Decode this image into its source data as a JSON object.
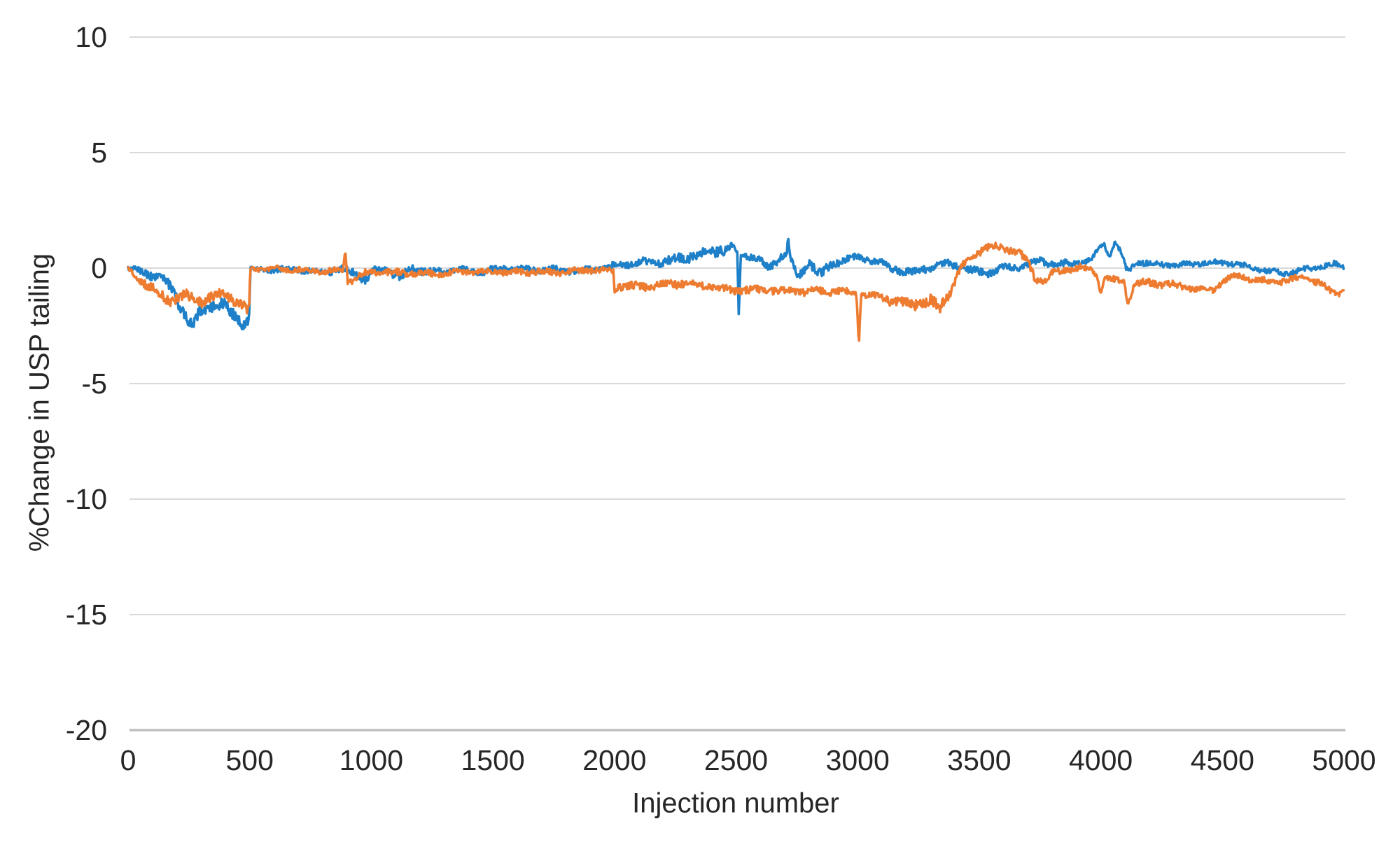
{
  "figure": {
    "background": "#FFFFFF"
  },
  "chart_data": {
    "type": "line",
    "title": "",
    "xlabel": "Injection number",
    "ylabel": "%Change in USP tailing",
    "xlim": [
      0,
      5000
    ],
    "ylim": [
      -20,
      10
    ],
    "xticks": [
      0,
      500,
      1000,
      1500,
      2000,
      2500,
      3000,
      3500,
      4000,
      4500,
      5000
    ],
    "yticks": [
      10,
      5,
      0,
      -5,
      -10,
      -15,
      -20
    ],
    "grid": "horizontal-only",
    "legend": "none",
    "gridline_color": "#D9D9D9",
    "axis_line_color": "#BFBFBF",
    "tick_label_color": "#262626",
    "noise_seed": 20250101,
    "series": [
      {
        "name": "blue-series",
        "color": "#1E80C8",
        "line_width": 3.6,
        "noise_note": "trend points are [injection, %change, local noise amplitude]",
        "trend": [
          [
            0,
            0,
            0.08
          ],
          [
            40,
            -0.15,
            0.15
          ],
          [
            100,
            -0.35,
            0.2
          ],
          [
            160,
            -0.7,
            0.22
          ],
          [
            210,
            -1.5,
            0.28
          ],
          [
            245,
            -2.3,
            0.3
          ],
          [
            265,
            -2.45,
            0.28
          ],
          [
            300,
            -1.85,
            0.28
          ],
          [
            340,
            -1.5,
            0.28
          ],
          [
            390,
            -1.55,
            0.25
          ],
          [
            430,
            -1.95,
            0.28
          ],
          [
            465,
            -2.3,
            0.28
          ],
          [
            497,
            -2.35,
            0.25
          ],
          [
            503,
            -0.05,
            0.1
          ],
          [
            600,
            -0.1,
            0.13
          ],
          [
            700,
            -0.08,
            0.13
          ],
          [
            800,
            -0.12,
            0.15
          ],
          [
            880,
            0,
            0.15
          ],
          [
            930,
            -0.2,
            0.2
          ],
          [
            975,
            -0.5,
            0.2
          ],
          [
            1010,
            -0.15,
            0.15
          ],
          [
            1060,
            -0.1,
            0.15
          ],
          [
            1120,
            -0.45,
            0.2
          ],
          [
            1170,
            -0.05,
            0.18
          ],
          [
            1250,
            -0.12,
            0.15
          ],
          [
            1350,
            -0.05,
            0.15
          ],
          [
            1450,
            -0.15,
            0.15
          ],
          [
            1550,
            -0.05,
            0.14
          ],
          [
            1650,
            -0.1,
            0.14
          ],
          [
            1750,
            -0.02,
            0.14
          ],
          [
            1850,
            -0.1,
            0.14
          ],
          [
            1950,
            -0.02,
            0.14
          ],
          [
            2030,
            0.12,
            0.15
          ],
          [
            2120,
            0.22,
            0.18
          ],
          [
            2220,
            0.35,
            0.2
          ],
          [
            2320,
            0.6,
            0.22
          ],
          [
            2420,
            0.75,
            0.25
          ],
          [
            2480,
            0.85,
            0.25
          ],
          [
            2505,
            0.65,
            0.15
          ],
          [
            2511,
            -2.05,
            0.05
          ],
          [
            2520,
            0.55,
            0.15
          ],
          [
            2570,
            0.5,
            0.2
          ],
          [
            2635,
            -0.05,
            0.18
          ],
          [
            2680,
            0.55,
            0.2
          ],
          [
            2708,
            0.6,
            0.1
          ],
          [
            2714,
            1.35,
            0.05
          ],
          [
            2722,
            0.5,
            0.12
          ],
          [
            2755,
            -0.35,
            0.18
          ],
          [
            2800,
            0.3,
            0.2
          ],
          [
            2850,
            -0.25,
            0.22
          ],
          [
            2900,
            0.2,
            0.18
          ],
          [
            2960,
            0.4,
            0.16
          ],
          [
            3050,
            0.35,
            0.16
          ],
          [
            3150,
            -0.02,
            0.18
          ],
          [
            3220,
            -0.15,
            0.18
          ],
          [
            3290,
            0.05,
            0.16
          ],
          [
            3360,
            0.2,
            0.16
          ],
          [
            3420,
            0.05,
            0.16
          ],
          [
            3470,
            -0.2,
            0.18
          ],
          [
            3530,
            -0.25,
            0.18
          ],
          [
            3600,
            0,
            0.15
          ],
          [
            3680,
            0.12,
            0.15
          ],
          [
            3755,
            0.35,
            0.16
          ],
          [
            3820,
            0.15,
            0.15
          ],
          [
            3900,
            0.2,
            0.15
          ],
          [
            3960,
            0.35,
            0.15
          ],
          [
            3990,
            0.8,
            0.12
          ],
          [
            4012,
            1.1,
            0.1
          ],
          [
            4035,
            0.45,
            0.12
          ],
          [
            4058,
            1.1,
            0.1
          ],
          [
            4080,
            0.75,
            0.12
          ],
          [
            4102,
            0.02,
            0.12
          ],
          [
            4118,
            -0.15,
            0.12
          ],
          [
            4140,
            0.3,
            0.13
          ],
          [
            4220,
            0.22,
            0.12
          ],
          [
            4320,
            0.12,
            0.12
          ],
          [
            4420,
            0.18,
            0.12
          ],
          [
            4520,
            0.22,
            0.12
          ],
          [
            4620,
            0.05,
            0.12
          ],
          [
            4700,
            -0.12,
            0.12
          ],
          [
            4765,
            -0.22,
            0.12
          ],
          [
            4840,
            -0.08,
            0.12
          ],
          [
            4910,
            0.05,
            0.12
          ],
          [
            4960,
            0.15,
            0.11
          ],
          [
            5000,
            0.05,
            0.1
          ]
        ]
      },
      {
        "name": "orange-series",
        "color": "#ED7C31",
        "line_width": 3.6,
        "noise_note": "trend points are [injection, %change, local noise amplitude]",
        "trend": [
          [
            0,
            -0.05,
            0.08
          ],
          [
            50,
            -0.55,
            0.18
          ],
          [
            110,
            -1.05,
            0.22
          ],
          [
            170,
            -1.35,
            0.24
          ],
          [
            240,
            -1.15,
            0.24
          ],
          [
            300,
            -1.35,
            0.24
          ],
          [
            345,
            -1.25,
            0.22
          ],
          [
            395,
            -1.05,
            0.22
          ],
          [
            450,
            -1.5,
            0.24
          ],
          [
            490,
            -1.9,
            0.22
          ],
          [
            497,
            -1.9,
            0.2
          ],
          [
            503,
            -0.05,
            0.1
          ],
          [
            600,
            -0.06,
            0.12
          ],
          [
            700,
            -0.05,
            0.12
          ],
          [
            800,
            -0.1,
            0.13
          ],
          [
            862,
            -0.1,
            0.12
          ],
          [
            885,
            -0.08,
            0.1
          ],
          [
            893,
            0.75,
            0.08
          ],
          [
            903,
            -0.55,
            0.12
          ],
          [
            930,
            -0.5,
            0.18
          ],
          [
            1000,
            -0.18,
            0.15
          ],
          [
            1080,
            -0.22,
            0.15
          ],
          [
            1180,
            -0.18,
            0.15
          ],
          [
            1280,
            -0.22,
            0.14
          ],
          [
            1380,
            -0.15,
            0.14
          ],
          [
            1480,
            -0.2,
            0.14
          ],
          [
            1580,
            -0.18,
            0.14
          ],
          [
            1680,
            -0.12,
            0.14
          ],
          [
            1780,
            -0.15,
            0.14
          ],
          [
            1880,
            -0.1,
            0.14
          ],
          [
            1960,
            -0.14,
            0.13
          ],
          [
            1995,
            -0.15,
            0.12
          ],
          [
            2001,
            -1.05,
            0.12
          ],
          [
            2015,
            -0.8,
            0.18
          ],
          [
            2100,
            -0.8,
            0.18
          ],
          [
            2200,
            -0.68,
            0.18
          ],
          [
            2290,
            -0.6,
            0.18
          ],
          [
            2380,
            -0.8,
            0.18
          ],
          [
            2470,
            -1,
            0.18
          ],
          [
            2560,
            -0.95,
            0.18
          ],
          [
            2650,
            -0.88,
            0.18
          ],
          [
            2740,
            -0.98,
            0.18
          ],
          [
            2830,
            -1.02,
            0.18
          ],
          [
            2920,
            -1.05,
            0.16
          ],
          [
            2995,
            -1.08,
            0.12
          ],
          [
            3005,
            -3.3,
            0.06
          ],
          [
            3014,
            -1.15,
            0.12
          ],
          [
            3080,
            -1.18,
            0.18
          ],
          [
            3160,
            -1.4,
            0.22
          ],
          [
            3240,
            -1.5,
            0.26
          ],
          [
            3300,
            -1.45,
            0.28
          ],
          [
            3335,
            -1.85,
            0.25
          ],
          [
            3360,
            -1.35,
            0.25
          ],
          [
            3390,
            -0.9,
            0.2
          ],
          [
            3420,
            -0.1,
            0.18
          ],
          [
            3465,
            0.5,
            0.18
          ],
          [
            3510,
            0.8,
            0.18
          ],
          [
            3560,
            0.95,
            0.18
          ],
          [
            3620,
            0.85,
            0.18
          ],
          [
            3665,
            0.7,
            0.18
          ],
          [
            3700,
            0.3,
            0.18
          ],
          [
            3732,
            -0.45,
            0.18
          ],
          [
            3762,
            -0.55,
            0.18
          ],
          [
            3800,
            -0.28,
            0.16
          ],
          [
            3855,
            -0.1,
            0.14
          ],
          [
            3920,
            -0.02,
            0.14
          ],
          [
            3962,
            -0.12,
            0.13
          ],
          [
            3985,
            -0.3,
            0.12
          ],
          [
            4000,
            -1.1,
            0.1
          ],
          [
            4015,
            -0.4,
            0.12
          ],
          [
            4060,
            -0.5,
            0.14
          ],
          [
            4095,
            -0.55,
            0.12
          ],
          [
            4112,
            -1.55,
            0.08
          ],
          [
            4135,
            -0.7,
            0.14
          ],
          [
            4175,
            -0.58,
            0.16
          ],
          [
            4270,
            -0.72,
            0.16
          ],
          [
            4360,
            -0.9,
            0.16
          ],
          [
            4450,
            -1.02,
            0.16
          ],
          [
            4510,
            -0.5,
            0.14
          ],
          [
            4560,
            -0.32,
            0.14
          ],
          [
            4640,
            -0.45,
            0.14
          ],
          [
            4700,
            -0.62,
            0.14
          ],
          [
            4770,
            -0.55,
            0.14
          ],
          [
            4835,
            -0.45,
            0.14
          ],
          [
            4900,
            -0.7,
            0.14
          ],
          [
            4950,
            -1.02,
            0.13
          ],
          [
            4980,
            -1.05,
            0.12
          ],
          [
            5000,
            -0.95,
            0.1
          ]
        ]
      }
    ]
  }
}
